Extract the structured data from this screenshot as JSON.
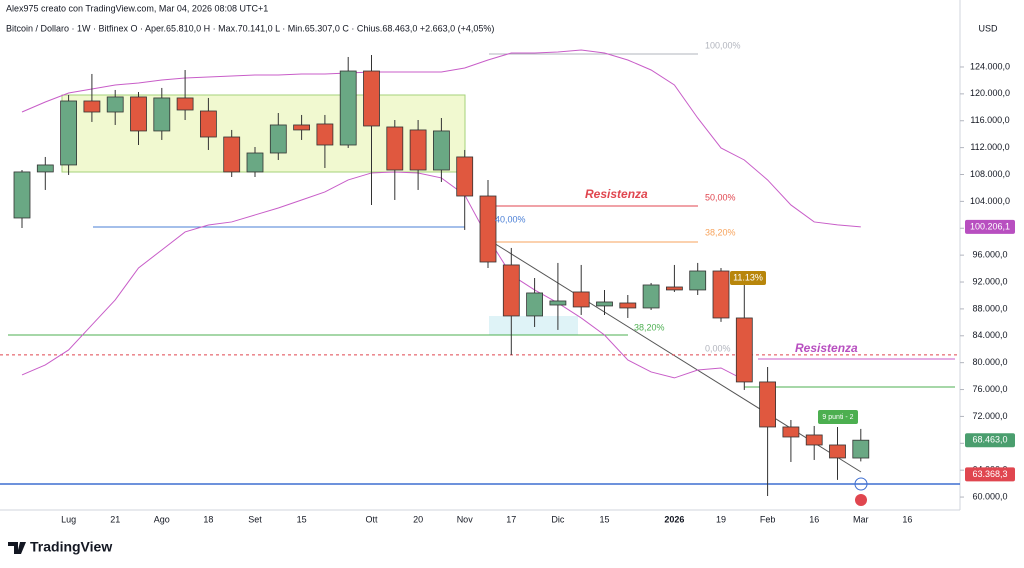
{
  "header": {
    "credit": "Alex975 creato con TradingView.com, Mar 04, 2026 08:08 UTC+1",
    "legend": "Bitcoin / Dollaro · 1W · Bitfinex   O · Aper.65.810,0   H · Max.70.141,0   L · Min.65.307,0   C · Chius.68.463,0   +2.663,0 (+4,05%)",
    "currency": "USD"
  },
  "footer": {
    "logo": "TradingView"
  },
  "chart_data": {
    "type": "candlestick",
    "categories": [
      null,
      null,
      "Lug",
      null,
      "21",
      null,
      "Ago",
      null,
      "18",
      null,
      "Set",
      null,
      "15",
      null,
      null,
      "Ott",
      null,
      "20",
      null,
      "Nov",
      null,
      "17",
      null,
      "Dic",
      null,
      "15",
      null,
      null,
      "2026",
      null,
      "19",
      null,
      "Feb",
      null,
      "16",
      null,
      "Mar",
      null,
      "16"
    ],
    "open": [
      101530,
      108380,
      109420,
      118940,
      117300,
      119540,
      114480,
      119390,
      117450,
      113580,
      108380,
      111200,
      115370,
      115520,
      112390,
      123400,
      115070,
      114630,
      108670,
      110610,
      104800,
      94540,
      86950,
      88580,
      90520,
      88440,
      88880,
      88140,
      91260,
      90820,
      93640,
      86650,
      77130,
      70430,
      69240,
      67750,
      65810,
      null,
      null
    ],
    "high": [
      108670,
      110610,
      119830,
      122960,
      120580,
      120280,
      120880,
      123550,
      119390,
      114630,
      112090,
      117150,
      116860,
      116860,
      125490,
      125780,
      116110,
      116110,
      116410,
      111650,
      107190,
      97070,
      92600,
      94840,
      94540,
      90820,
      90070,
      91860,
      94540,
      94840,
      94090,
      91560,
      79360,
      71470,
      70580,
      70430,
      70141,
      null,
      null
    ],
    "low": [
      100040,
      105700,
      107930,
      115820,
      115370,
      112390,
      113140,
      116110,
      111650,
      107630,
      107630,
      110160,
      113140,
      108970,
      111950,
      103470,
      104210,
      105700,
      106890,
      99750,
      94090,
      81150,
      85310,
      84870,
      87100,
      87100,
      86650,
      87840,
      90520,
      90070,
      86060,
      75940,
      60160,
      65220,
      65520,
      62550,
      65307,
      null,
      null
    ],
    "close": [
      108380,
      109420,
      118940,
      117300,
      119540,
      114480,
      119390,
      117600,
      113580,
      108380,
      111200,
      115370,
      114630,
      112390,
      123400,
      115220,
      108670,
      108670,
      114480,
      104800,
      94980,
      86950,
      90370,
      89180,
      88290,
      89030,
      88140,
      91560,
      90820,
      93640,
      86650,
      77130,
      70430,
      68940,
      67750,
      65820,
      68463,
      null,
      null
    ],
    "up_color": "#6aa884",
    "down_color": "#e0583f",
    "bands": [
      {
        "color": "#c85dc8",
        "values": [
          117300,
          118790,
          120130,
          120730,
          121320,
          121620,
          122070,
          122360,
          122510,
          122660,
          122810,
          122810,
          122960,
          122960,
          123110,
          123260,
          123260,
          123260,
          123260,
          123850,
          125040,
          126080,
          126080,
          126230,
          126530,
          126080,
          125040,
          123550,
          121320,
          116410,
          111950,
          110160,
          107190,
          103470,
          100940,
          100500,
          100206,
          null,
          null
        ]
      },
      {
        "color": "#c85dc8",
        "values": [
          78170,
          79660,
          81890,
          85610,
          89330,
          94090,
          96770,
          99450,
          100490,
          100940,
          101980,
          103020,
          104210,
          105400,
          107190,
          108230,
          108380,
          108230,
          107490,
          104960,
          98560,
          93050,
          90820,
          88880,
          86650,
          84120,
          80400,
          78620,
          77730,
          78910,
          79210,
          77430,
          null,
          null,
          null,
          null,
          null,
          null,
          null
        ]
      }
    ],
    "levels": [
      {
        "value": 125930,
        "color": "#b2b5be"
      },
      {
        "value": 103320,
        "color": "#e0464f"
      },
      {
        "value": 97960,
        "color": "#f7a35c"
      },
      {
        "value": 100190,
        "color": "#4a7fd6"
      },
      {
        "value": 84120,
        "color": "#4caf50"
      },
      {
        "value": 80550,
        "color": "#c85dc8"
      },
      {
        "value": 76380,
        "color": "#4caf50"
      },
      {
        "value": 81150,
        "color": "#e0464f",
        "dashed": true
      },
      {
        "value": 61950,
        "color": "#3d6ed1"
      }
    ],
    "annotations": [
      {
        "text": "Resistenza",
        "color": "#e0464f"
      },
      {
        "text": "Resistenza",
        "color": "#b84fc0"
      },
      {
        "text": "100,00%",
        "color": "#b2b5be"
      },
      {
        "text": "50,00%",
        "color": "#e0464f"
      },
      {
        "text": "38,20%",
        "color": "#f7a35c"
      },
      {
        "text": "40,00%",
        "color": "#4a7fd6"
      },
      {
        "text": "38,20%",
        "color": "#4caf50"
      },
      {
        "text": "0,00%",
        "color": "#b2b5be"
      },
      {
        "text": "11.13%",
        "color": "#b8860b"
      },
      {
        "text": "9 punti - 2",
        "color": "#4caf50"
      }
    ],
    "price_labels": [
      {
        "value": 100206.1,
        "label": "100.206,1",
        "color": "#b84fc0"
      },
      {
        "value": 68463,
        "label": "68.463,0",
        "color": "#4a9e6e"
      },
      {
        "value": 63368.3,
        "label": "63.368,3",
        "color": "#e0464f"
      }
    ],
    "ylim": [
      58000,
      133000
    ],
    "yticks": [
      {
        "value": 60000,
        "label": "60.000,0"
      },
      {
        "value": 64000,
        "label": "64.000,0"
      },
      {
        "value": 68000,
        "label": "68.000,0"
      },
      {
        "value": 72000,
        "label": "72.000,0"
      },
      {
        "value": 76000,
        "label": "76.000,0"
      },
      {
        "value": 80000,
        "label": "80.000,0"
      },
      {
        "value": 84000,
        "label": "84.000,0"
      },
      {
        "value": 88000,
        "label": "88.000,0"
      },
      {
        "value": 92000,
        "label": "92.000,0"
      },
      {
        "value": 96000,
        "label": "96.000,0"
      },
      {
        "value": 100000,
        "label": "100.000,0"
      },
      {
        "value": 104000,
        "label": "104.000,0"
      },
      {
        "value": 108000,
        "label": "108.000,0"
      },
      {
        "value": 112000,
        "label": "112.000,0"
      },
      {
        "value": 116000,
        "label": "116.000,0"
      },
      {
        "value": 120000,
        "label": "120.000,0"
      },
      {
        "value": 124000,
        "label": "124.000,0"
      }
    ]
  }
}
